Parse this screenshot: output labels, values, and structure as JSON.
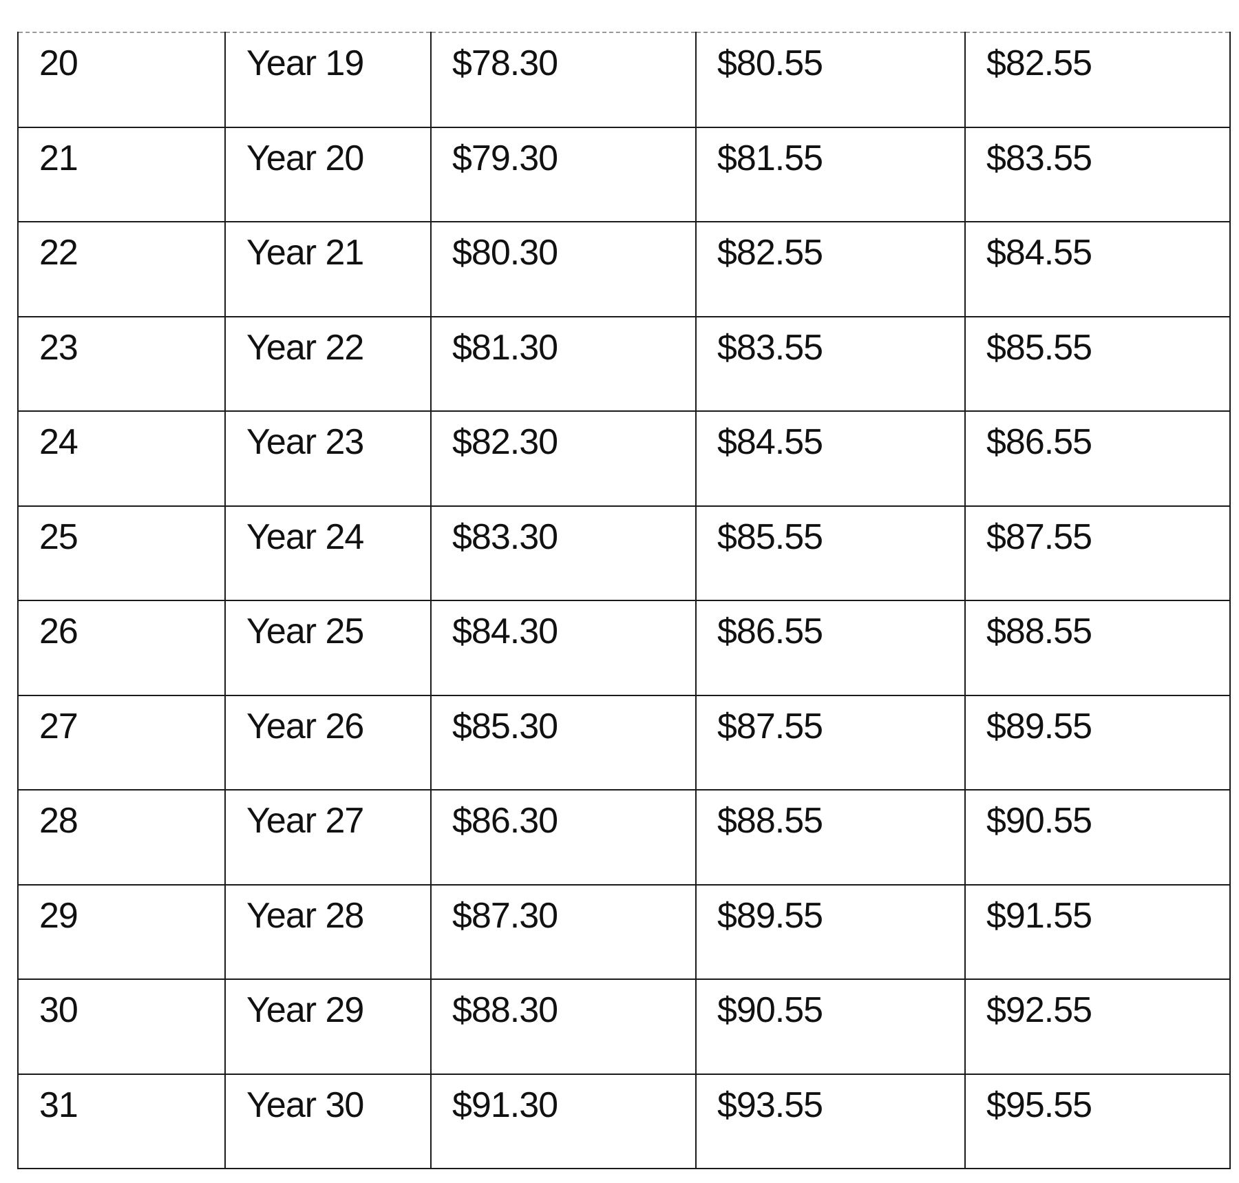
{
  "table": {
    "rows": [
      [
        "20",
        "Year 19",
        "$78.30",
        "$80.55",
        "$82.55"
      ],
      [
        "21",
        "Year 20",
        "$79.30",
        "$81.55",
        "$83.55"
      ],
      [
        "22",
        "Year 21",
        "$80.30",
        "$82.55",
        "$84.55"
      ],
      [
        "23",
        "Year 22",
        "$81.30",
        "$83.55",
        "$85.55"
      ],
      [
        "24",
        "Year 23",
        "$82.30",
        "$84.55",
        "$86.55"
      ],
      [
        "25",
        "Year 24",
        "$83.30",
        "$85.55",
        "$87.55"
      ],
      [
        "26",
        "Year 25",
        "$84.30",
        "$86.55",
        "$88.55"
      ],
      [
        "27",
        "Year 26",
        "$85.30",
        "$87.55",
        "$89.55"
      ],
      [
        "28",
        "Year 27",
        "$86.30",
        "$88.55",
        "$90.55"
      ],
      [
        "29",
        "Year 28",
        "$87.30",
        "$89.55",
        "$91.55"
      ],
      [
        "30",
        "Year 29",
        "$88.30",
        "$90.55",
        "$92.55"
      ],
      [
        "31",
        "Year 30",
        "$91.30",
        "$93.55",
        "$95.55"
      ]
    ]
  }
}
